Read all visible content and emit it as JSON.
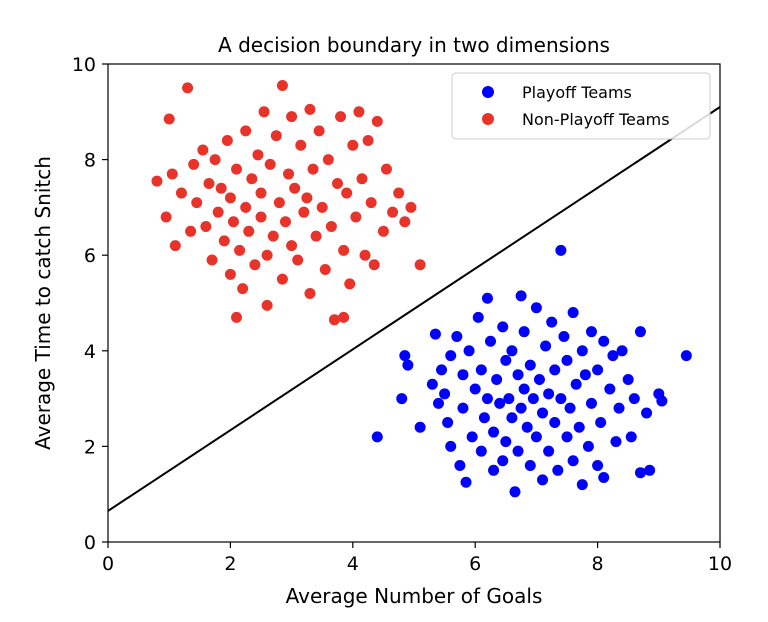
{
  "chart_data": {
    "type": "scatter",
    "title": "A decision boundary in two dimensions",
    "xlabel": "Average Number of Goals",
    "ylabel": "Average Time to catch Snitch",
    "xlim": [
      0,
      10
    ],
    "ylim": [
      0,
      10
    ],
    "x_ticks": [
      "0",
      "2",
      "4",
      "6",
      "8",
      "10"
    ],
    "y_ticks": [
      "0",
      "2",
      "4",
      "6",
      "8",
      "10"
    ],
    "grid": false,
    "legend_position": "top-right",
    "series": [
      {
        "name": "Playoff Teams",
        "color": "#0000ff",
        "points": [
          [
            4.4,
            2.2
          ],
          [
            4.8,
            3.0
          ],
          [
            4.85,
            3.9
          ],
          [
            4.9,
            3.7
          ],
          [
            5.1,
            2.4
          ],
          [
            5.3,
            3.3
          ],
          [
            5.35,
            4.35
          ],
          [
            5.4,
            2.9
          ],
          [
            5.45,
            3.6
          ],
          [
            5.5,
            3.1
          ],
          [
            5.55,
            2.5
          ],
          [
            5.6,
            2.0
          ],
          [
            5.6,
            3.9
          ],
          [
            5.7,
            4.3
          ],
          [
            5.75,
            1.6
          ],
          [
            5.8,
            3.5
          ],
          [
            5.8,
            2.8
          ],
          [
            5.85,
            1.25
          ],
          [
            5.9,
            4.0
          ],
          [
            5.95,
            2.2
          ],
          [
            6.0,
            3.2
          ],
          [
            6.05,
            4.7
          ],
          [
            6.1,
            1.9
          ],
          [
            6.1,
            3.6
          ],
          [
            6.15,
            2.6
          ],
          [
            6.2,
            5.1
          ],
          [
            6.2,
            3.0
          ],
          [
            6.25,
            4.2
          ],
          [
            6.3,
            1.5
          ],
          [
            6.3,
            2.3
          ],
          [
            6.35,
            3.4
          ],
          [
            6.4,
            2.9
          ],
          [
            6.45,
            4.5
          ],
          [
            6.45,
            1.7
          ],
          [
            6.5,
            3.8
          ],
          [
            6.5,
            2.1
          ],
          [
            6.55,
            3.0
          ],
          [
            6.6,
            4.0
          ],
          [
            6.6,
            2.6
          ],
          [
            6.65,
            1.05
          ],
          [
            6.7,
            3.5
          ],
          [
            6.7,
            1.9
          ],
          [
            6.75,
            5.15
          ],
          [
            6.75,
            2.8
          ],
          [
            6.8,
            3.2
          ],
          [
            6.8,
            4.4
          ],
          [
            6.85,
            2.4
          ],
          [
            6.9,
            3.7
          ],
          [
            6.9,
            1.6
          ],
          [
            6.95,
            3.0
          ],
          [
            7.0,
            4.9
          ],
          [
            7.0,
            2.2
          ],
          [
            7.05,
            3.4
          ],
          [
            7.1,
            1.3
          ],
          [
            7.1,
            2.7
          ],
          [
            7.15,
            4.1
          ],
          [
            7.2,
            3.1
          ],
          [
            7.2,
            1.9
          ],
          [
            7.25,
            4.6
          ],
          [
            7.3,
            2.5
          ],
          [
            7.3,
            3.6
          ],
          [
            7.35,
            1.5
          ],
          [
            7.4,
            6.1
          ],
          [
            7.4,
            3.0
          ],
          [
            7.45,
            4.3
          ],
          [
            7.5,
            2.2
          ],
          [
            7.5,
            3.8
          ],
          [
            7.55,
            2.8
          ],
          [
            7.6,
            4.8
          ],
          [
            7.6,
            1.7
          ],
          [
            7.65,
            3.3
          ],
          [
            7.7,
            2.4
          ],
          [
            7.75,
            1.2
          ],
          [
            7.75,
            4.0
          ],
          [
            7.8,
            3.5
          ],
          [
            7.85,
            2.0
          ],
          [
            7.9,
            4.4
          ],
          [
            7.9,
            2.9
          ],
          [
            8.0,
            3.6
          ],
          [
            8.0,
            1.6
          ],
          [
            8.05,
            2.5
          ],
          [
            8.1,
            4.2
          ],
          [
            8.1,
            1.35
          ],
          [
            8.2,
            3.2
          ],
          [
            8.25,
            3.9
          ],
          [
            8.3,
            2.1
          ],
          [
            8.35,
            2.8
          ],
          [
            8.4,
            4.0
          ],
          [
            8.5,
            3.4
          ],
          [
            8.55,
            2.2
          ],
          [
            8.6,
            3.0
          ],
          [
            8.7,
            4.4
          ],
          [
            8.7,
            1.45
          ],
          [
            8.8,
            2.7
          ],
          [
            8.85,
            1.5
          ],
          [
            9.0,
            3.1
          ],
          [
            9.05,
            2.95
          ],
          [
            9.45,
            3.9
          ]
        ]
      },
      {
        "name": "Non-Playoff Teams",
        "color": "#e8332a",
        "points": [
          [
            0.8,
            7.55
          ],
          [
            0.95,
            6.8
          ],
          [
            1.0,
            8.85
          ],
          [
            1.05,
            7.7
          ],
          [
            1.1,
            6.2
          ],
          [
            1.2,
            7.3
          ],
          [
            1.3,
            9.5
          ],
          [
            1.35,
            6.5
          ],
          [
            1.4,
            7.9
          ],
          [
            1.45,
            7.1
          ],
          [
            1.55,
            8.2
          ],
          [
            1.6,
            6.6
          ],
          [
            1.65,
            7.5
          ],
          [
            1.7,
            5.9
          ],
          [
            1.75,
            8.0
          ],
          [
            1.8,
            6.9
          ],
          [
            1.85,
            7.4
          ],
          [
            1.9,
            6.3
          ],
          [
            1.95,
            8.4
          ],
          [
            2.0,
            7.2
          ],
          [
            2.0,
            5.6
          ],
          [
            2.05,
            6.7
          ],
          [
            2.1,
            4.7
          ],
          [
            2.1,
            7.8
          ],
          [
            2.15,
            6.1
          ],
          [
            2.2,
            5.3
          ],
          [
            2.25,
            8.6
          ],
          [
            2.25,
            7.0
          ],
          [
            2.3,
            6.5
          ],
          [
            2.35,
            7.6
          ],
          [
            2.4,
            5.8
          ],
          [
            2.45,
            8.1
          ],
          [
            2.5,
            6.8
          ],
          [
            2.5,
            7.3
          ],
          [
            2.55,
            9.0
          ],
          [
            2.6,
            6.0
          ],
          [
            2.6,
            4.95
          ],
          [
            2.65,
            7.9
          ],
          [
            2.7,
            6.4
          ],
          [
            2.75,
            8.5
          ],
          [
            2.8,
            7.1
          ],
          [
            2.85,
            5.5
          ],
          [
            2.85,
            9.55
          ],
          [
            2.9,
            6.7
          ],
          [
            2.95,
            7.7
          ],
          [
            3.0,
            6.2
          ],
          [
            3.0,
            8.9
          ],
          [
            3.05,
            7.4
          ],
          [
            3.1,
            5.9
          ],
          [
            3.15,
            8.3
          ],
          [
            3.2,
            6.9
          ],
          [
            3.25,
            7.2
          ],
          [
            3.3,
            5.2
          ],
          [
            3.3,
            9.05
          ],
          [
            3.35,
            7.8
          ],
          [
            3.4,
            6.4
          ],
          [
            3.45,
            8.6
          ],
          [
            3.5,
            7.0
          ],
          [
            3.55,
            5.7
          ],
          [
            3.6,
            8.0
          ],
          [
            3.65,
            6.6
          ],
          [
            3.7,
            4.65
          ],
          [
            3.75,
            7.5
          ],
          [
            3.8,
            8.9
          ],
          [
            3.85,
            6.1
          ],
          [
            3.85,
            4.7
          ],
          [
            3.9,
            7.3
          ],
          [
            3.95,
            5.4
          ],
          [
            4.0,
            8.3
          ],
          [
            4.05,
            6.8
          ],
          [
            4.1,
            9.0
          ],
          [
            4.15,
            7.6
          ],
          [
            4.2,
            6.0
          ],
          [
            4.25,
            8.4
          ],
          [
            4.3,
            7.1
          ],
          [
            4.35,
            5.8
          ],
          [
            4.4,
            8.8
          ],
          [
            4.5,
            6.5
          ],
          [
            4.55,
            7.8
          ],
          [
            4.65,
            6.9
          ],
          [
            4.75,
            7.3
          ],
          [
            4.85,
            6.7
          ],
          [
            4.95,
            7.0
          ],
          [
            5.1,
            5.8
          ]
        ]
      }
    ],
    "decision_boundary": {
      "line_points": [
        [
          0,
          0.65
        ],
        [
          10,
          9.1
        ]
      ],
      "color": "#000000"
    }
  }
}
